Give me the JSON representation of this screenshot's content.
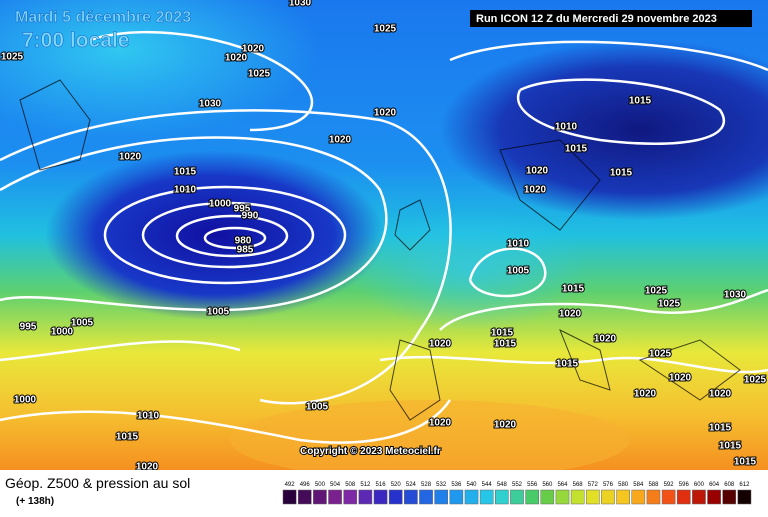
{
  "header": {
    "date": "Mardi 5 décembre 2023",
    "time": "7:00 locale",
    "run": "Run ICON 12 Z du Mercredi 29 novembre 2023"
  },
  "copyright": "Copyright © 2023 Meteociel.fr",
  "footer": {
    "title": "Géop. Z500 & pression au sol",
    "lead": "(+ 138h)"
  },
  "scale": [
    492,
    496,
    500,
    504,
    508,
    512,
    516,
    520,
    524,
    528,
    532,
    536,
    540,
    544,
    548,
    552,
    556,
    560,
    564,
    568,
    572,
    576,
    580,
    584,
    588,
    592,
    596,
    600,
    604,
    608,
    612
  ],
  "isobar_labels": [
    "1030",
    "1025",
    "1020",
    "1020",
    "1025",
    "1025",
    "1030",
    "1020",
    "1020",
    "1020",
    "1015",
    "1010",
    "1000",
    "995",
    "990",
    "980",
    "985",
    "1005",
    "1005",
    "1000",
    "995",
    "1000",
    "1010",
    "1015",
    "1020",
    "1005",
    "1020",
    "1020",
    "1020",
    "1015",
    "1010",
    "1015",
    "1020",
    "1020",
    "1015",
    "1010",
    "1005",
    "1015",
    "1020",
    "1025",
    "1025",
    "1030",
    "1015",
    "1015",
    "1020",
    "1015",
    "1025",
    "1020",
    "1020",
    "1020",
    "1025",
    "1015",
    "1015",
    "1015"
  ]
}
